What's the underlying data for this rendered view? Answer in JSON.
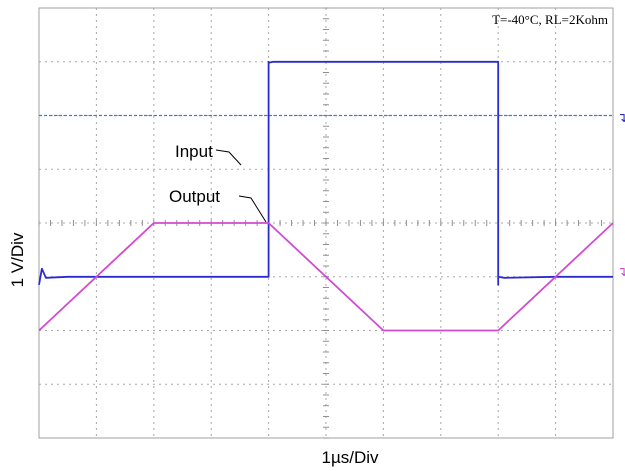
{
  "chart_data": {
    "type": "line",
    "title": "",
    "annotation": "T=-40°C, RL=2Kohm",
    "xlabel": "1µs/Div",
    "ylabel": "1 V/Div",
    "xlim": [
      0,
      10
    ],
    "ylim": [
      -4,
      4
    ],
    "x_unit": "div",
    "y_unit": "div",
    "grid": true,
    "grid_style": "dotted",
    "divisions": {
      "x": 10,
      "y": 8
    },
    "series": [
      {
        "name": "Input",
        "color": "#2a2ad0",
        "points": [
          [
            0.0,
            -1.15
          ],
          [
            0.05,
            -0.85
          ],
          [
            0.12,
            -1.02
          ],
          [
            0.5,
            -1.0
          ],
          [
            1.0,
            -1.0
          ],
          [
            2.0,
            -1.0
          ],
          [
            3.0,
            -1.0
          ],
          [
            4.0,
            -1.0
          ],
          [
            4.0,
            -1.0
          ],
          [
            4.0,
            3.0
          ],
          [
            4.0,
            2.98
          ],
          [
            4.08,
            3.0
          ],
          [
            5.0,
            3.0
          ],
          [
            6.0,
            3.0
          ],
          [
            7.0,
            3.0
          ],
          [
            8.0,
            3.0
          ],
          [
            8.0,
            -1.15
          ],
          [
            8.0,
            -1.0
          ],
          [
            8.1,
            -1.02
          ],
          [
            9.0,
            -1.0
          ],
          [
            10.0,
            -1.0
          ]
        ]
      },
      {
        "name": "Output",
        "color": "#d24ad2",
        "points": [
          [
            0.0,
            -2.0
          ],
          [
            2.0,
            0.0
          ],
          [
            4.0,
            0.0
          ],
          [
            6.0,
            -2.0
          ],
          [
            8.0,
            -2.0
          ],
          [
            10.0,
            0.0
          ]
        ]
      }
    ],
    "reference_levels": [
      {
        "name": "trigger-level",
        "y": 2.0,
        "color": "#2a8ad0",
        "style": "dashed"
      }
    ],
    "labels": [
      {
        "text": "Input",
        "series": "Input"
      },
      {
        "text": "Output",
        "series": "Output"
      }
    ],
    "right_markers": [
      {
        "glyph": "↴",
        "color": "#2a2ad0"
      },
      {
        "glyph": "↴",
        "color": "#d24ad2"
      }
    ]
  }
}
